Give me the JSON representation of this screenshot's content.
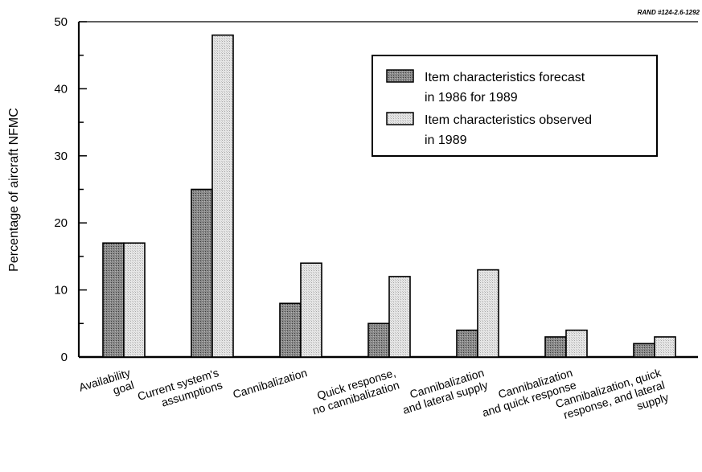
{
  "credit": "RAND #124-2.6-1292",
  "chart_data": {
    "type": "bar",
    "title": "",
    "xlabel": "",
    "ylabel": "Percentage of aircraft NFMC",
    "ylim": [
      0,
      50
    ],
    "yticks": [
      0,
      10,
      20,
      30,
      40,
      50
    ],
    "grid": false,
    "legend_position": "top-right",
    "categories": [
      [
        "Availability",
        "goal"
      ],
      [
        "Current system's",
        "assumptions"
      ],
      [
        "Cannibalization"
      ],
      [
        "Quick response,",
        "no cannibalization"
      ],
      [
        "Cannibalization",
        "and lateral supply"
      ],
      [
        "Cannibalization",
        "and quick response"
      ],
      [
        "Cannibalization, quick",
        "response, and lateral",
        "supply"
      ]
    ],
    "series": [
      {
        "name": "Item characteristics forecast in 1986 for 1989",
        "legend_lines": [
          "Item characteristics forecast",
          "in 1986 for 1989"
        ],
        "values": [
          17,
          25,
          8,
          5,
          4,
          3,
          2
        ],
        "color": "#7d7d7d"
      },
      {
        "name": "Item characteristics observed in 1989",
        "legend_lines": [
          "Item characteristics observed",
          "in 1989"
        ],
        "values": [
          17,
          48,
          14,
          12,
          13,
          4,
          3
        ],
        "color": "#d9d9d9"
      }
    ]
  }
}
